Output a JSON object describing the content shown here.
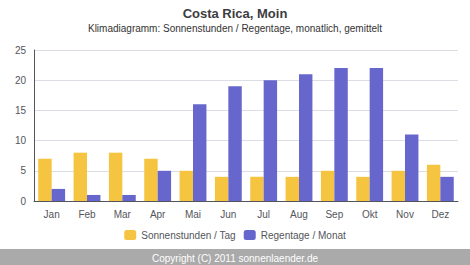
{
  "chart_data": {
    "type": "bar",
    "title": "Costa Rica, Moin",
    "subtitle": "Klimadiagramm: Sonnenstunden / Regentage, monatlich, gemittelt",
    "annotations": [
      "Copyright (C) 2011 sonnenlaender.de"
    ],
    "categories": [
      "Jan",
      "Feb",
      "Mar",
      "Apr",
      "Mai",
      "Jun",
      "Jul",
      "Aug",
      "Sep",
      "Okt",
      "Nov",
      "Dez"
    ],
    "series": [
      {
        "name": "Sonnenstunden / Tag",
        "color": "#F5C542",
        "values": [
          7,
          8,
          8,
          7,
          5,
          4,
          4,
          4,
          5,
          4,
          5,
          6
        ]
      },
      {
        "name": "Regentage / Monat",
        "color": "#6666CC",
        "values": [
          2,
          1,
          1,
          5,
          16,
          19,
          20,
          21,
          22,
          22,
          11,
          4
        ]
      }
    ],
    "ylim": [
      0,
      25
    ],
    "yticks": [
      0,
      5,
      10,
      15,
      20,
      25
    ],
    "grid": true,
    "legend": "bottom"
  }
}
